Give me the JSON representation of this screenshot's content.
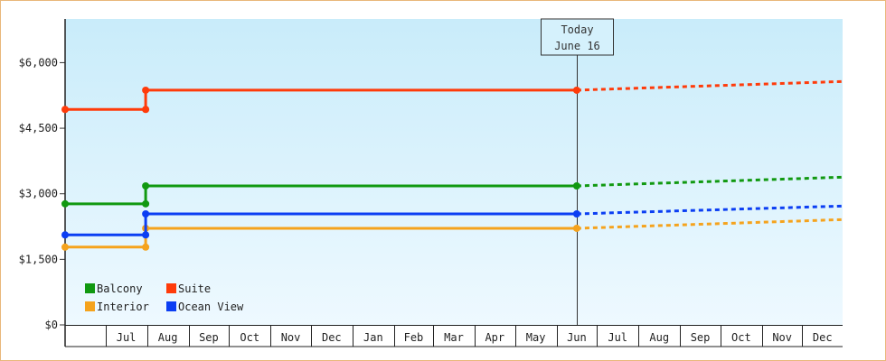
{
  "chart_data": {
    "type": "line",
    "title": "",
    "xlabel": "",
    "ylabel": "",
    "x_range": [
      "2015-06-01",
      "2016-12-31"
    ],
    "ylim": [
      0,
      7000
    ],
    "y_ticks": [
      0,
      1500,
      3000,
      4500,
      6000
    ],
    "y_tick_labels": [
      "$0",
      "$1,500",
      "$3,000",
      "$4,500",
      "$6,000"
    ],
    "x_categories": [
      "Jul",
      "Aug",
      "Sep",
      "Oct",
      "Nov",
      "Dec",
      "Jan",
      "Feb",
      "Mar",
      "Apr",
      "May",
      "Jun",
      "Jul",
      "Aug",
      "Sep",
      "Oct",
      "Nov",
      "Dec"
    ],
    "month_starts": [
      "2015-06-01",
      "2015-07-01",
      "2015-08-01",
      "2015-09-01",
      "2015-10-01",
      "2015-11-01",
      "2015-12-01",
      "2016-01-01",
      "2016-02-01",
      "2016-03-01",
      "2016-04-01",
      "2016-05-01",
      "2016-06-01",
      "2016-07-01",
      "2016-08-01",
      "2016-09-01",
      "2016-10-01",
      "2016-11-01",
      "2016-12-01",
      "2016-12-31"
    ],
    "grid": true,
    "background_gradient": [
      "#c9ecfa",
      "#eef9ff"
    ],
    "legend_position": "bottom-left",
    "today": {
      "date": "2016-06-16",
      "line1": "Today",
      "line2": "June 16"
    },
    "series": [
      {
        "name": "Balcony",
        "color": "#119911",
        "history": [
          [
            "2015-06-01",
            2770
          ],
          [
            "2015-07-31",
            2770
          ],
          [
            "2015-07-31",
            3180
          ],
          [
            "2016-06-16",
            3180
          ]
        ],
        "forecast": [
          [
            "2016-06-16",
            3180
          ],
          [
            "2016-12-31",
            3380
          ]
        ]
      },
      {
        "name": "Suite",
        "color": "#ff3b0a",
        "history": [
          [
            "2015-06-01",
            4930
          ],
          [
            "2015-07-31",
            4930
          ],
          [
            "2015-07-31",
            5370
          ],
          [
            "2016-06-16",
            5370
          ]
        ],
        "forecast": [
          [
            "2016-06-16",
            5370
          ],
          [
            "2016-12-31",
            5570
          ]
        ]
      },
      {
        "name": "Interior",
        "color": "#f5a31d",
        "history": [
          [
            "2015-06-01",
            1780
          ],
          [
            "2015-07-31",
            1780
          ],
          [
            "2015-07-31",
            2210
          ],
          [
            "2016-06-16",
            2210
          ]
        ],
        "forecast": [
          [
            "2016-06-16",
            2210
          ],
          [
            "2016-12-31",
            2410
          ]
        ]
      },
      {
        "name": "Ocean View",
        "color": "#0b3ef3",
        "history": [
          [
            "2015-06-01",
            2060
          ],
          [
            "2015-07-31",
            2060
          ],
          [
            "2015-07-31",
            2540
          ],
          [
            "2016-06-16",
            2540
          ]
        ],
        "forecast": [
          [
            "2016-06-16",
            2540
          ],
          [
            "2016-12-31",
            2720
          ]
        ]
      }
    ]
  }
}
